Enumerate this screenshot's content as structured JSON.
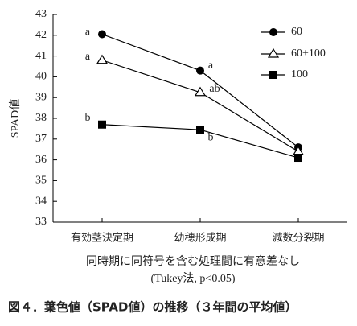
{
  "chart_data": {
    "type": "line",
    "categories": [
      "有効茎決定期",
      "幼穂形成期",
      "減数分裂期"
    ],
    "series": [
      {
        "name": "60",
        "color": "#000000",
        "marker": "circle",
        "values": [
          42.05,
          40.3,
          36.6
        ],
        "letters": [
          "a",
          "a",
          null
        ]
      },
      {
        "name": "60+100",
        "color": "#000000",
        "marker": "triangle",
        "values": [
          40.8,
          39.25,
          36.4
        ],
        "letters": [
          "a",
          "ab",
          null
        ]
      },
      {
        "name": "100",
        "color": "#000000",
        "marker": "square",
        "values": [
          37.7,
          37.45,
          36.1
        ],
        "letters": [
          "b",
          "b",
          null
        ]
      }
    ],
    "ylabel": "SPAD値",
    "ylim": [
      33,
      43
    ],
    "yticks": [
      33,
      34,
      35,
      36,
      37,
      38,
      39,
      40,
      41,
      42,
      43
    ],
    "note": [
      "同時期に同符号を含む処理間に有意差なし",
      "(Tukey法, p<0.05)"
    ],
    "caption": "図４．葉色値（SPAD値）の推移（３年間の平均値）",
    "legend": "top-right"
  }
}
